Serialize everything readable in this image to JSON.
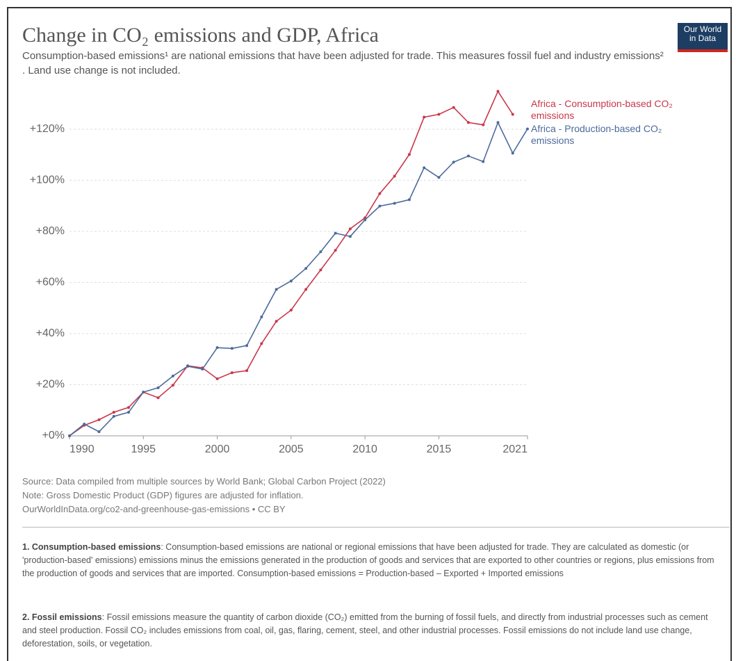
{
  "chart_data": {
    "type": "line",
    "title": "Change in CO₂ emissions and GDP, Africa",
    "subtitle": "Consumption-based emissions¹ are national emissions that have been adjusted for trade. This measures fossil fuel and industry emissions² . Land use change is not included.",
    "logo": "Our World in Data",
    "x": [
      1990,
      1991,
      1992,
      1993,
      1994,
      1995,
      1996,
      1997,
      1998,
      1999,
      2000,
      2001,
      2002,
      2003,
      2004,
      2005,
      2006,
      2007,
      2008,
      2009,
      2010,
      2011,
      2012,
      2013,
      2014,
      2015,
      2016,
      2017,
      2018,
      2019,
      2020,
      2021
    ],
    "series": [
      {
        "name": "Africa - Consumption-based CO₂ emissions",
        "color": "#c8374a",
        "values": [
          0,
          4.1,
          6.3,
          9.2,
          11.1,
          17.1,
          14.9,
          19.8,
          27.4,
          26.6,
          22.3,
          24.7,
          25.5,
          36.1,
          44.8,
          49.2,
          57.3,
          64.9,
          72.6,
          81.0,
          85.3,
          94.8,
          101.6,
          110.1,
          124.7,
          125.8,
          128.5,
          122.6,
          121.7,
          134.8,
          125.8,
          null
        ]
      },
      {
        "name": "Africa - Production-based CO₂ emissions",
        "color": "#4c6a9c",
        "values": [
          0,
          4.6,
          1.6,
          7.6,
          9.2,
          17.1,
          18.8,
          23.4,
          27.2,
          26.1,
          34.5,
          34.2,
          35.3,
          46.5,
          57.3,
          60.6,
          65.5,
          72.0,
          79.3,
          78.0,
          84.5,
          89.9,
          91.0,
          92.4,
          104.9,
          101.1,
          107.1,
          109.5,
          107.3,
          122.6,
          110.6,
          120.1
        ]
      }
    ],
    "xlim": [
      1990,
      2021
    ],
    "xticks": [
      1990,
      1995,
      2000,
      2005,
      2010,
      2015,
      2021
    ],
    "ylim": [
      0,
      136
    ],
    "yticks": [
      {
        "value": 0,
        "label": "+0%"
      },
      {
        "value": 20,
        "label": "+20%"
      },
      {
        "value": 40,
        "label": "+40%"
      },
      {
        "value": 60,
        "label": "+60%"
      },
      {
        "value": 80,
        "label": "+80%"
      },
      {
        "value": 100,
        "label": "+100%"
      },
      {
        "value": 120,
        "label": "+120%"
      }
    ],
    "grid": true,
    "sources": [
      "Source: Data compiled from multiple sources by World Bank; Global Carbon Project (2022)",
      "Note: Gross Domestic Product (GDP) figures are adjusted for inflation.",
      "OurWorldInData.org/co2-and-greenhouse-gas-emissions • CC BY"
    ],
    "footnotes": [
      {
        "term": "1. Consumption-based emissions",
        "text": ": Consumption-based emissions are national or regional emissions that have been adjusted for trade. They are calculated as domestic (or 'production-based' emissions) emissions minus the emissions generated in the production of goods and services that are exported to other countries or regions, plus emissions from the production of goods and services that are imported. Consumption-based emissions = Production-based – Exported + Imported emissions"
      },
      {
        "term": "2. Fossil emissions",
        "text": ": Fossil emissions measure the quantity of carbon dioxide (CO₂) emitted from the burning of fossil fuels, and directly from industrial processes such as cement and steel production. Fossil CO₂ includes emissions from coal, oil, gas, flaring, cement, steel, and other industrial processes. Fossil emissions do not include land use change, deforestation, soils, or vegetation."
      }
    ]
  }
}
